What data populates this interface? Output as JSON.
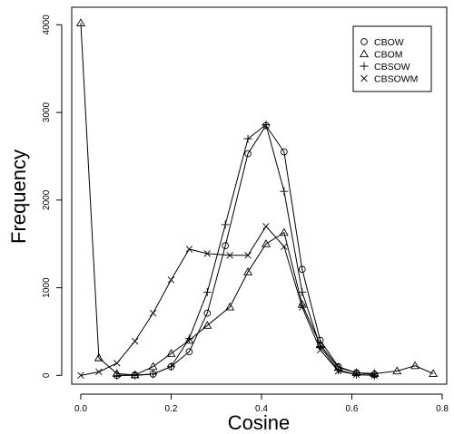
{
  "chart_data": {
    "type": "line",
    "title": "",
    "xlabel": "Cosine",
    "ylabel": "Frequency",
    "xlim": [
      -0.02,
      0.81
    ],
    "ylim": [
      -100,
      4200
    ],
    "x_ticks": [
      0.0,
      0.2,
      0.4,
      0.6,
      0.8
    ],
    "x_tick_labels": [
      "0.0",
      "0.2",
      "0.4",
      "0.6",
      "0.8"
    ],
    "y_ticks": [
      0,
      1000,
      2000,
      3000,
      4000
    ],
    "y_tick_labels": [
      "0",
      "1000",
      "2000",
      "3000",
      "4000"
    ],
    "grid": false,
    "legend_position": "top-right",
    "series": [
      {
        "name": "CBOW",
        "marker": "circle",
        "x": [
          0.08,
          0.12,
          0.16,
          0.2,
          0.24,
          0.28,
          0.32,
          0.37,
          0.41,
          0.45,
          0.49,
          0.53,
          0.57,
          0.61,
          0.65
        ],
        "y": [
          0,
          5,
          15,
          100,
          270,
          710,
          1480,
          2530,
          2850,
          2550,
          1210,
          400,
          100,
          30,
          10
        ]
      },
      {
        "name": "CBOM",
        "marker": "triangle",
        "x": [
          0.0,
          0.04,
          0.08,
          0.12,
          0.16,
          0.2,
          0.24,
          0.28,
          0.33,
          0.37,
          0.41,
          0.45,
          0.49,
          0.53,
          0.57,
          0.61,
          0.65,
          0.7,
          0.74,
          0.78
        ],
        "y": [
          4020,
          200,
          20,
          5,
          100,
          250,
          400,
          570,
          780,
          1180,
          1500,
          1630,
          810,
          350,
          90,
          30,
          20,
          50,
          110,
          20
        ]
      },
      {
        "name": "CBSOW",
        "marker": "plus",
        "x": [
          0.08,
          0.12,
          0.16,
          0.2,
          0.24,
          0.28,
          0.32,
          0.37,
          0.41,
          0.45,
          0.49,
          0.53,
          0.57,
          0.61,
          0.65
        ],
        "y": [
          0,
          0,
          15,
          100,
          420,
          950,
          1720,
          2700,
          2860,
          2100,
          950,
          330,
          60,
          10,
          0
        ]
      },
      {
        "name": "CBSOWM",
        "marker": "cross",
        "x": [
          0.0,
          0.04,
          0.08,
          0.12,
          0.16,
          0.2,
          0.24,
          0.28,
          0.33,
          0.37,
          0.41,
          0.45,
          0.49,
          0.53,
          0.57,
          0.61,
          0.65
        ],
        "y": [
          0,
          40,
          140,
          390,
          710,
          1090,
          1440,
          1390,
          1370,
          1370,
          1700,
          1470,
          780,
          290,
          50,
          10,
          0
        ]
      }
    ]
  }
}
